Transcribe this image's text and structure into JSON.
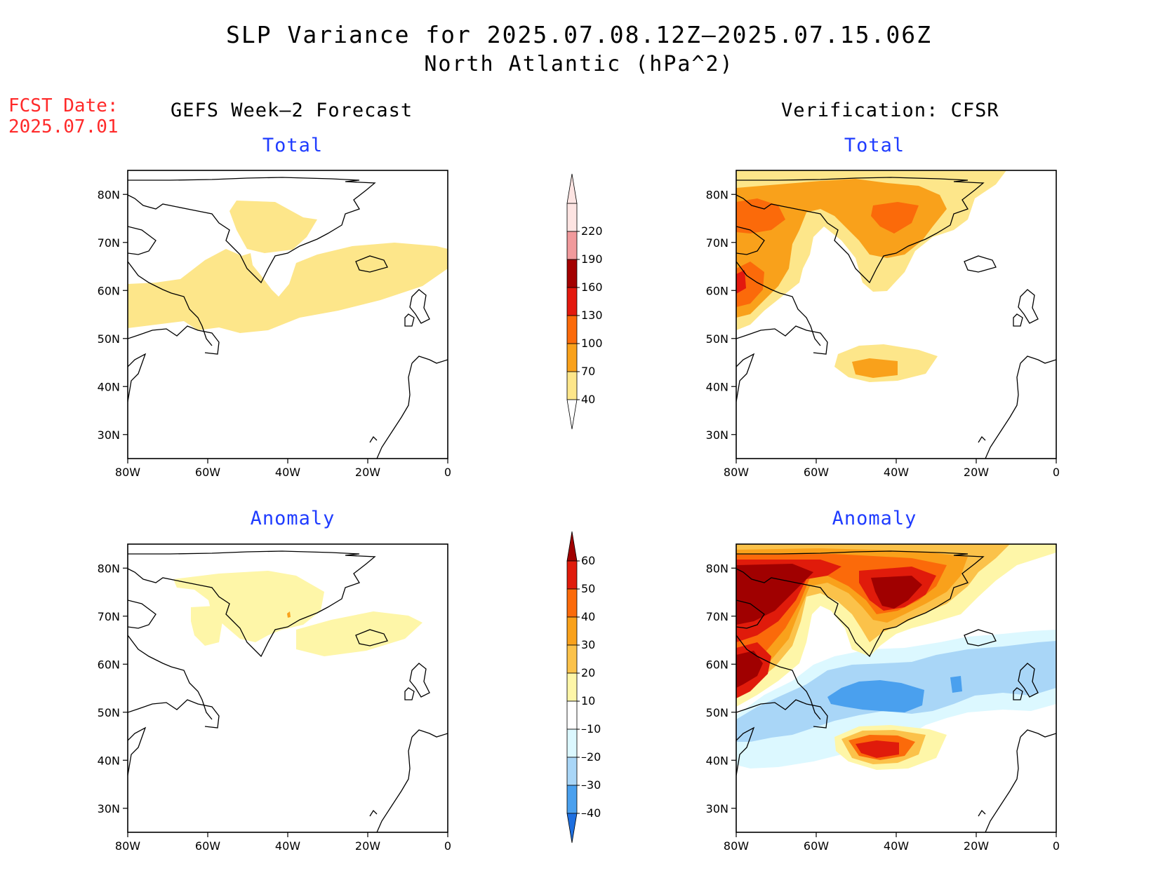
{
  "title": {
    "line1": "SLP Variance for 2025.07.08.12Z–2025.07.15.06Z",
    "line2": "North Atlantic (hPa^2)"
  },
  "fcst_date": {
    "label": "FCST Date:",
    "value": "2025.07.01"
  },
  "columns": {
    "left": "GEFS Week–2 Forecast",
    "right": "Verification: CFSR"
  },
  "panel_titles": {
    "total": "Total",
    "anomaly": "Anomaly"
  },
  "axes": {
    "lat_labels": [
      "80N",
      "70N",
      "60N",
      "50N",
      "40N",
      "30N"
    ],
    "lat_values": [
      80,
      70,
      60,
      50,
      40,
      30
    ],
    "lon_labels": [
      "80W",
      "60W",
      "40W",
      "20W",
      "0"
    ],
    "lon_values": [
      -80,
      -60,
      -40,
      -20,
      0
    ],
    "lon_range": [
      -80,
      0
    ],
    "lat_range": [
      25,
      85
    ]
  },
  "colorbars": {
    "total": {
      "levels": [
        "40",
        "70",
        "100",
        "130",
        "160",
        "190",
        "220"
      ],
      "colors": [
        "#fde68a",
        "#f9a11b",
        "#fb6a0a",
        "#e3180e",
        "#a30000",
        "#f19a9c",
        "#fde4e2"
      ]
    },
    "anomaly": {
      "levels": [
        "60",
        "50",
        "40",
        "30",
        "20",
        "10",
        "–10",
        "–20",
        "–30",
        "–40"
      ],
      "colors": [
        "#a00000",
        "#e01b0b",
        "#fb6a0a",
        "#f9a11b",
        "#fbc24a",
        "#fef6a8",
        "#ffffff",
        "#dcf8ff",
        "#a9d6f7",
        "#4aa0ee",
        "#1e6fe0"
      ]
    }
  },
  "chart_data": [
    {
      "type": "map",
      "panel": "GEFS Week-2 Forecast Total",
      "units": "hPa^2",
      "regions": [
        {
          "level_min": 40,
          "area": "central Greenland ~76N 40W"
        },
        {
          "level_min": 40,
          "area": "Labrador Sea to Iceland band 50-66N, 80W-0"
        }
      ]
    },
    {
      "type": "map",
      "panel": "Verification CFSR Total",
      "units": "hPa^2",
      "regions": [
        {
          "level_min": 40,
          "area": "Canadian Arctic / Greenland 65-85N"
        },
        {
          "level_min": 70,
          "area": "eastern Greenland ~75N 40W"
        },
        {
          "level_min": 70,
          "area": "Hudson Bay ~57N 77W"
        },
        {
          "level_min": 70,
          "area": "mid-Atlantic ~45N 45W"
        }
      ]
    },
    {
      "type": "map",
      "panel": "GEFS Week-2 Forecast Anomaly",
      "units": "hPa^2",
      "regions": [
        {
          "level_min": 10,
          "area": "southern Greenland 62-80N"
        },
        {
          "level_min": 10,
          "area": "Iceland 62-70N"
        }
      ]
    },
    {
      "type": "map",
      "panel": "Verification CFSR Anomaly",
      "units": "hPa^2",
      "regions": [
        {
          "level_min": 60,
          "area": "Baffin / Greenland 70-82N"
        },
        {
          "level_min": 50,
          "area": "mid-Atlantic ~44N 45W"
        },
        {
          "level_min": -30,
          "area": "band 48-58N, 75-10W"
        }
      ]
    }
  ]
}
